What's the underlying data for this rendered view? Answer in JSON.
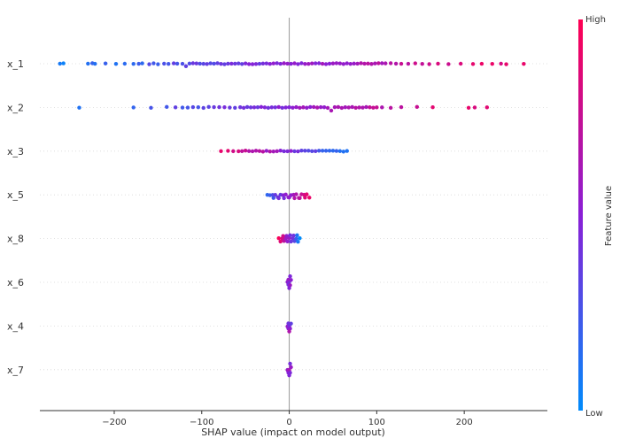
{
  "chart_data": {
    "type": "scatter",
    "subtype": "shap-beeswarm",
    "title": "",
    "xlabel": "SHAP value (impact on model output)",
    "ylabel": "",
    "xlim": [
      -285,
      295
    ],
    "xticks": [
      -200,
      -100,
      0,
      100,
      200
    ],
    "xtick_labels": [
      "−200",
      "−100",
      "0",
      "100",
      "200"
    ],
    "grid": false,
    "colors": {
      "low": "#008bfb",
      "high": "#ff0052",
      "zero_line": "#999999"
    },
    "colorbar": {
      "label": "Feature value",
      "high_label": "High",
      "low_label": "Low"
    },
    "series": [
      {
        "name": "x_1",
        "values": [
          -262,
          -258,
          -230,
          -225,
          -222,
          -210,
          -198,
          -188,
          -178,
          -172,
          -168,
          -160,
          -155,
          -150,
          -143,
          -138,
          -132,
          -128,
          -122,
          -118,
          -114,
          -110,
          -106,
          -102,
          -98,
          -94,
          -90,
          -86,
          -82,
          -78,
          -74,
          -70,
          -66,
          -62,
          -58,
          -54,
          -50,
          -46,
          -42,
          -38,
          -34,
          -30,
          -26,
          -22,
          -18,
          -14,
          -10,
          -6,
          -2,
          2,
          6,
          10,
          14,
          18,
          22,
          26,
          30,
          34,
          38,
          42,
          46,
          50,
          54,
          58,
          62,
          66,
          70,
          74,
          78,
          82,
          86,
          90,
          94,
          98,
          102,
          106,
          110,
          116,
          122,
          128,
          136,
          144,
          152,
          160,
          170,
          182,
          196,
          210,
          220,
          232,
          242,
          248,
          268
        ]
      },
      {
        "name": "x_2",
        "values": [
          -240,
          -178,
          -158,
          -140,
          -130,
          -122,
          -116,
          -110,
          -104,
          -98,
          -92,
          -86,
          -80,
          -74,
          -68,
          -62,
          -56,
          -52,
          -48,
          -44,
          -40,
          -36,
          -32,
          -28,
          -24,
          -20,
          -16,
          -12,
          -8,
          -4,
          0,
          4,
          8,
          12,
          16,
          20,
          24,
          28,
          32,
          36,
          40,
          44,
          48,
          52,
          56,
          60,
          64,
          68,
          72,
          76,
          80,
          84,
          88,
          92,
          96,
          100,
          106,
          116,
          128,
          146,
          164,
          205,
          212,
          226
        ]
      },
      {
        "name": "x_3",
        "values": [
          -78,
          -70,
          -64,
          -58,
          -54,
          -50,
          -46,
          -42,
          -38,
          -34,
          -30,
          -26,
          -22,
          -18,
          -14,
          -10,
          -6,
          -2,
          2,
          6,
          10,
          14,
          18,
          22,
          26,
          30,
          34,
          38,
          42,
          46,
          50,
          54,
          58,
          62,
          66
        ]
      },
      {
        "name": "x_5",
        "values": [
          -25,
          -22,
          -19,
          -16,
          -13,
          -10,
          -7,
          -4,
          -1,
          2,
          5,
          8,
          11,
          14,
          17,
          20,
          23,
          -18,
          -12,
          -6,
          0,
          6,
          12,
          18
        ]
      },
      {
        "name": "x_8",
        "values": [
          -12,
          -10,
          -8,
          -6,
          -4,
          -2,
          0,
          2,
          4,
          6,
          8,
          10,
          12,
          -7,
          -3,
          1,
          5,
          9
        ]
      },
      {
        "name": "x_6",
        "values": [
          -2,
          -1,
          0,
          1,
          2,
          0,
          1,
          -1
        ]
      },
      {
        "name": "x_4",
        "values": [
          -2,
          -1,
          0,
          1,
          2,
          0,
          -1
        ]
      },
      {
        "name": "x_7",
        "values": [
          -2,
          -1,
          0,
          1,
          2,
          0,
          1
        ]
      }
    ]
  }
}
